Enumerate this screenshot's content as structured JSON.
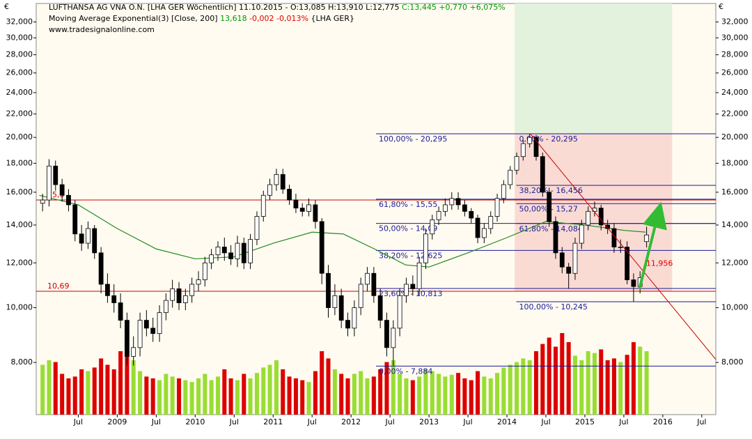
{
  "chart_data": {
    "type": "candlestick",
    "header": [
      [
        {
          "text": "LUFTHANSA AG VNA O.N. [LHA GER  Wöchentlich] 11.10.2015 - O:13,085 H:13,910 L:12,775 ",
          "color": "#000000"
        },
        {
          "text": "C:13,445 +0,770 +6,075%",
          "color": "#009900"
        }
      ],
      [
        {
          "text": "Moving Average Exponential(3) [Close, 200] ",
          "color": "#000000"
        },
        {
          "text": "13,618",
          "color": "#009900"
        },
        {
          "text": " -0,002 -0,013%",
          "color": "#dd0000"
        },
        {
          "text": " {LHA GER}",
          "color": "#000000"
        }
      ],
      [
        {
          "text": "www.tradesignalonline.com",
          "color": "#000000"
        }
      ]
    ],
    "currency": "€",
    "xlim": [
      2007.96,
      2016.68
    ],
    "xticks": [
      {
        "value": 2008.5,
        "label": "Jul"
      },
      {
        "value": 2009,
        "label": "2009"
      },
      {
        "value": 2009.5,
        "label": "Jul"
      },
      {
        "value": 2010,
        "label": "2010"
      },
      {
        "value": 2010.5,
        "label": "Jul"
      },
      {
        "value": 2011,
        "label": "2011"
      },
      {
        "value": 2011.5,
        "label": "Jul"
      },
      {
        "value": 2012,
        "label": "2012"
      },
      {
        "value": 2012.5,
        "label": "Jul"
      },
      {
        "value": 2013,
        "label": "2013"
      },
      {
        "value": 2013.5,
        "label": "Jul"
      },
      {
        "value": 2014,
        "label": "2014"
      },
      {
        "value": 2014.5,
        "label": "Jul"
      },
      {
        "value": 2015,
        "label": "2015"
      },
      {
        "value": 2015.5,
        "label": "Jul"
      },
      {
        "value": 2016,
        "label": "2016"
      },
      {
        "value": 2016.5,
        "label": "Jul"
      }
    ],
    "ylim": [
      6.47,
      34.5
    ],
    "log_scale": true,
    "yticks": [
      {
        "value": 8,
        "label": "8,000"
      },
      {
        "value": 10,
        "label": "10,000"
      },
      {
        "value": 12,
        "label": "12,000"
      },
      {
        "value": 14,
        "label": "14,000"
      },
      {
        "value": 16,
        "label": "16,000"
      },
      {
        "value": 18,
        "label": "18,000"
      },
      {
        "value": 20,
        "label": "20,000"
      },
      {
        "value": 22,
        "label": "22,000"
      },
      {
        "value": 24,
        "label": "24,000"
      },
      {
        "value": 26,
        "label": "26,000"
      },
      {
        "value": 28,
        "label": "28,000"
      },
      {
        "value": 30,
        "label": "30,000"
      },
      {
        "value": 32,
        "label": "32,000"
      }
    ],
    "x": [
      2008.042,
      2008.125,
      2008.208,
      2008.292,
      2008.375,
      2008.458,
      2008.542,
      2008.625,
      2008.708,
      2008.792,
      2008.875,
      2008.958,
      2009.042,
      2009.125,
      2009.208,
      2009.292,
      2009.375,
      2009.458,
      2009.542,
      2009.625,
      2009.708,
      2009.792,
      2009.875,
      2009.958,
      2010.042,
      2010.125,
      2010.208,
      2010.292,
      2010.375,
      2010.458,
      2010.542,
      2010.625,
      2010.708,
      2010.792,
      2010.875,
      2010.958,
      2011.042,
      2011.125,
      2011.208,
      2011.292,
      2011.375,
      2011.458,
      2011.542,
      2011.625,
      2011.708,
      2011.792,
      2011.875,
      2011.958,
      2012.042,
      2012.125,
      2012.208,
      2012.292,
      2012.375,
      2012.458,
      2012.542,
      2012.625,
      2012.708,
      2012.792,
      2012.875,
      2012.958,
      2013.042,
      2013.125,
      2013.208,
      2013.292,
      2013.375,
      2013.458,
      2013.542,
      2013.625,
      2013.708,
      2013.792,
      2013.875,
      2013.958,
      2014.042,
      2014.125,
      2014.208,
      2014.292,
      2014.375,
      2014.458,
      2014.542,
      2014.625,
      2014.708,
      2014.792,
      2014.875,
      2014.958,
      2015.042,
      2015.125,
      2015.208,
      2015.292,
      2015.375,
      2015.458,
      2015.542,
      2015.625,
      2015.708,
      2015.792
    ],
    "open": [
      15.3,
      15.5,
      17.8,
      16.5,
      15.8,
      15.2,
      13.5,
      13.0,
      13.8,
      12.5,
      11.0,
      10.5,
      10.2,
      9.5,
      8.2,
      8.5,
      9.5,
      9.2,
      9.0,
      9.8,
      10.3,
      10.8,
      10.2,
      10.5,
      11.0,
      11.2,
      12.0,
      12.4,
      12.8,
      12.5,
      12.2,
      13.0,
      12.0,
      13.2,
      14.5,
      15.8,
      16.5,
      17.2,
      16.2,
      15.5,
      15.0,
      14.8,
      15.2,
      14.2,
      11.5,
      10.0,
      10.5,
      9.5,
      9.2,
      10.0,
      11.0,
      11.5,
      10.5,
      9.5,
      8.5,
      9.2,
      10.5,
      11.0,
      10.8,
      12.0,
      13.5,
      14.3,
      14.8,
      15.2,
      15.6,
      15.2,
      14.8,
      14.4,
      13.3,
      13.8,
      14.5,
      15.6,
      16.5,
      17.5,
      18.5,
      19.5,
      20.0,
      18.5,
      16.0,
      14.2,
      12.5,
      11.8,
      11.5,
      13.0,
      14.0,
      14.8,
      15.0,
      14.0,
      13.8,
      12.8,
      12.8,
      11.2,
      10.9,
      13.085
    ],
    "high": [
      15.9,
      18.3,
      18.2,
      16.9,
      16.2,
      15.5,
      14.0,
      14.2,
      14.0,
      12.8,
      11.5,
      11.0,
      10.6,
      9.8,
      8.9,
      9.8,
      9.9,
      9.6,
      10.1,
      10.6,
      11.2,
      11.1,
      10.8,
      11.3,
      11.6,
      12.3,
      12.7,
      13.1,
      13.3,
      12.9,
      13.4,
      13.3,
      13.5,
      14.8,
      16.1,
      16.9,
      17.6,
      17.6,
      16.5,
      15.9,
      15.3,
      15.6,
      15.5,
      14.4,
      11.9,
      11.0,
      10.8,
      9.8,
      10.3,
      11.3,
      11.8,
      11.8,
      10.8,
      9.8,
      9.5,
      10.8,
      11.3,
      11.4,
      12.3,
      13.8,
      14.6,
      15.1,
      15.6,
      16.0,
      16.0,
      15.5,
      15.0,
      14.6,
      14.1,
      14.8,
      15.9,
      16.8,
      17.8,
      18.8,
      19.8,
      20.3,
      20.2,
      18.8,
      16.3,
      14.5,
      12.8,
      12.0,
      13.3,
      14.3,
      15.1,
      15.4,
      15.2,
      14.3,
      14.1,
      13.2,
      13.1,
      11.5,
      11.6,
      13.91
    ],
    "low": [
      14.8,
      15.1,
      16.1,
      15.4,
      14.8,
      13.1,
      12.6,
      12.7,
      12.2,
      10.6,
      10.2,
      9.8,
      9.2,
      7.9,
      7.9,
      8.2,
      8.9,
      8.7,
      8.7,
      9.5,
      10.0,
      9.9,
      9.9,
      10.2,
      10.7,
      10.9,
      11.7,
      12.1,
      12.1,
      11.9,
      11.8,
      11.7,
      11.7,
      12.9,
      14.2,
      15.5,
      16.1,
      15.9,
      15.2,
      14.7,
      14.5,
      14.5,
      13.8,
      11.0,
      9.6,
      9.7,
      9.2,
      8.9,
      8.9,
      9.7,
      10.7,
      10.2,
      9.2,
      8.2,
      7.9,
      8.9,
      10.2,
      10.5,
      10.5,
      11.7,
      13.2,
      14.0,
      14.5,
      14.9,
      14.9,
      14.5,
      14.1,
      13.0,
      13.0,
      13.5,
      14.2,
      15.3,
      16.2,
      17.2,
      18.2,
      19.2,
      18.2,
      15.7,
      13.9,
      12.2,
      11.5,
      10.8,
      11.2,
      12.7,
      13.7,
      14.5,
      13.7,
      13.5,
      12.5,
      12.5,
      11.0,
      10.25,
      10.6,
      12.775
    ],
    "close": [
      15.5,
      17.8,
      16.5,
      15.8,
      15.2,
      13.5,
      13.0,
      13.8,
      12.5,
      11.0,
      10.5,
      10.2,
      9.5,
      8.2,
      8.5,
      9.5,
      9.2,
      9.0,
      9.8,
      10.3,
      10.8,
      10.2,
      10.5,
      11.0,
      11.2,
      12.0,
      12.4,
      12.8,
      12.5,
      12.2,
      13.0,
      12.0,
      13.2,
      14.5,
      15.8,
      16.5,
      17.2,
      16.2,
      15.5,
      15.0,
      14.8,
      15.2,
      14.2,
      11.5,
      10.0,
      10.5,
      9.5,
      9.2,
      10.0,
      11.0,
      11.5,
      10.5,
      9.5,
      8.5,
      9.2,
      10.5,
      11.0,
      10.8,
      12.0,
      13.5,
      14.3,
      14.8,
      15.2,
      15.6,
      15.2,
      14.8,
      14.4,
      13.3,
      13.8,
      14.5,
      15.6,
      16.5,
      17.5,
      18.5,
      19.5,
      20.0,
      18.5,
      16.0,
      14.2,
      12.5,
      11.8,
      11.5,
      13.0,
      14.0,
      14.8,
      15.0,
      14.0,
      13.8,
      12.8,
      12.8,
      11.2,
      10.9,
      11.3,
      13.445
    ],
    "volume": {
      "ylim": [
        0,
        100
      ],
      "up_color": "#99dd33",
      "down_color": "#dd0000",
      "values": [
        55,
        60,
        58,
        45,
        40,
        42,
        50,
        48,
        52,
        62,
        55,
        50,
        70,
        65,
        60,
        48,
        42,
        40,
        38,
        45,
        42,
        40,
        38,
        36,
        40,
        45,
        38,
        42,
        50,
        40,
        38,
        45,
        40,
        46,
        52,
        55,
        60,
        50,
        42,
        40,
        38,
        36,
        48,
        70,
        62,
        50,
        45,
        40,
        45,
        48,
        40,
        42,
        50,
        58,
        60,
        45,
        40,
        38,
        42,
        50,
        48,
        45,
        42,
        44,
        46,
        40,
        38,
        48,
        42,
        40,
        46,
        52,
        55,
        58,
        62,
        60,
        70,
        78,
        85,
        75,
        90,
        80,
        65,
        60,
        70,
        68,
        72,
        60,
        62,
        58,
        66,
        80,
        75,
        70
      ]
    },
    "candle_colors": {
      "up": "#ffffff",
      "down": "#000000",
      "outline": "#000000"
    },
    "ema": {
      "color": "#228b22",
      "x": [
        2008.0,
        2008.5,
        2009.0,
        2009.5,
        2010.0,
        2010.5,
        2011.0,
        2011.5,
        2011.9,
        2012.3,
        2012.7,
        2013.0,
        2013.5,
        2014.0,
        2014.5,
        2015.0,
        2015.5,
        2015.78
      ],
      "values": [
        15.8,
        15.2,
        13.8,
        12.7,
        12.2,
        12.3,
        13.0,
        13.6,
        13.5,
        12.7,
        11.9,
        11.8,
        12.5,
        13.3,
        14.2,
        14.0,
        13.7,
        13.6
      ]
    },
    "horizontal_lines": [
      {
        "value": 15.5,
        "label": "15,5",
        "color": "#cc0000"
      },
      {
        "value": 10.69,
        "label": "10,69",
        "color": "#cc0000"
      }
    ],
    "fib_sets": [
      {
        "x_start": 2012.32,
        "color": "#1a1a99",
        "levels": [
          {
            "value": 20.295,
            "label": "100,00% - 20,295"
          },
          {
            "value": 15.55,
            "label": "61,80% - 15,55"
          },
          {
            "value": 14.09,
            "label": "50,00% - 14,09"
          },
          {
            "value": 12.625,
            "label": "38,20% - 12,625"
          },
          {
            "value": 10.813,
            "label": "23,60% - 10,813"
          },
          {
            "value": 7.884,
            "label": "0,00% - 7,884"
          }
        ]
      },
      {
        "x_start": 2014.12,
        "color": "#1a1a99",
        "levels": [
          {
            "value": 20.295,
            "label": "0,00% - 20,295"
          },
          {
            "value": 16.456,
            "label": "38,20% - 16,456"
          },
          {
            "value": 15.27,
            "label": "50,00% - 15,27"
          },
          {
            "value": 14.084,
            "label": "61,80% - 14,084"
          },
          {
            "value": 10.245,
            "label": "100,00% - 10,245"
          }
        ]
      }
    ],
    "zones": [
      {
        "x": [
          2014.1,
          2016.12
        ],
        "y": [
          20.3,
          34.5
        ],
        "color": "#e3f2dc"
      },
      {
        "x": [
          2014.1,
          2016.12
        ],
        "y": [
          10.7,
          20.3
        ],
        "color": "#fadbd4"
      }
    ],
    "trend_line": {
      "x": [
        2014.3,
        2016.68
      ],
      "y": [
        20.3,
        8.1
      ],
      "color": "#cc0000"
    },
    "arrow": {
      "x": [
        2015.7,
        2015.98
      ],
      "y": [
        10.8,
        15.4
      ],
      "color": "#33bb33"
    },
    "annotation": {
      "x": 2015.75,
      "value": 11.956,
      "label": "11,956",
      "color": "#dd0000"
    }
  }
}
